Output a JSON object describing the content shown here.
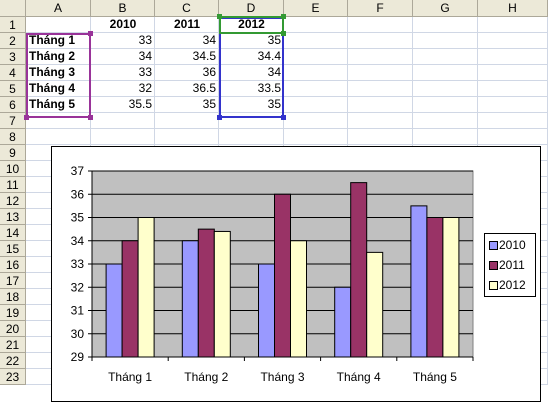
{
  "columns": [
    "A",
    "B",
    "C",
    "D",
    "E",
    "F",
    "G",
    "H"
  ],
  "rows": [
    "1",
    "2",
    "3",
    "4",
    "5",
    "6",
    "7",
    "8",
    "9",
    "10",
    "11",
    "12",
    "13",
    "14",
    "15",
    "16",
    "17",
    "18",
    "19",
    "20",
    "21",
    "22",
    "23"
  ],
  "table": {
    "headers": [
      "2010",
      "2011",
      "2012"
    ],
    "rows": [
      {
        "label": "Tháng 1",
        "v2010": "33",
        "v2011": "34",
        "v2012": "35"
      },
      {
        "label": "Tháng 2",
        "v2010": "34",
        "v2011": "34.5",
        "v2012": "34.4"
      },
      {
        "label": "Tháng 3",
        "v2010": "33",
        "v2011": "36",
        "v2012": "34"
      },
      {
        "label": "Tháng 4",
        "v2010": "32",
        "v2011": "36.5",
        "v2012": "33.5"
      },
      {
        "label": "Tháng 5",
        "v2010": "35.5",
        "v2011": "35",
        "v2012": "35"
      }
    ]
  },
  "colors": {
    "s2010": "#9999ff",
    "s2011": "#993366",
    "s2012": "#ffffcc",
    "plot_bg": "#c0c0c0"
  },
  "chart_data": {
    "type": "bar",
    "categories": [
      "Tháng 1",
      "Tháng 2",
      "Tháng 3",
      "Tháng 4",
      "Tháng 5"
    ],
    "series": [
      {
        "name": "2010",
        "values": [
          33,
          34,
          33,
          32,
          35.5
        ],
        "color": "#9999ff"
      },
      {
        "name": "2011",
        "values": [
          34,
          34.5,
          36,
          36.5,
          35
        ],
        "color": "#993366"
      },
      {
        "name": "2012",
        "values": [
          35,
          34.4,
          34,
          33.5,
          35
        ],
        "color": "#ffffcc"
      }
    ],
    "ylim": [
      29,
      37
    ],
    "yticks": [
      29,
      30,
      31,
      32,
      33,
      34,
      35,
      36,
      37
    ],
    "grid": true,
    "legend": "right",
    "title": "",
    "xlabel": "",
    "ylabel": ""
  }
}
